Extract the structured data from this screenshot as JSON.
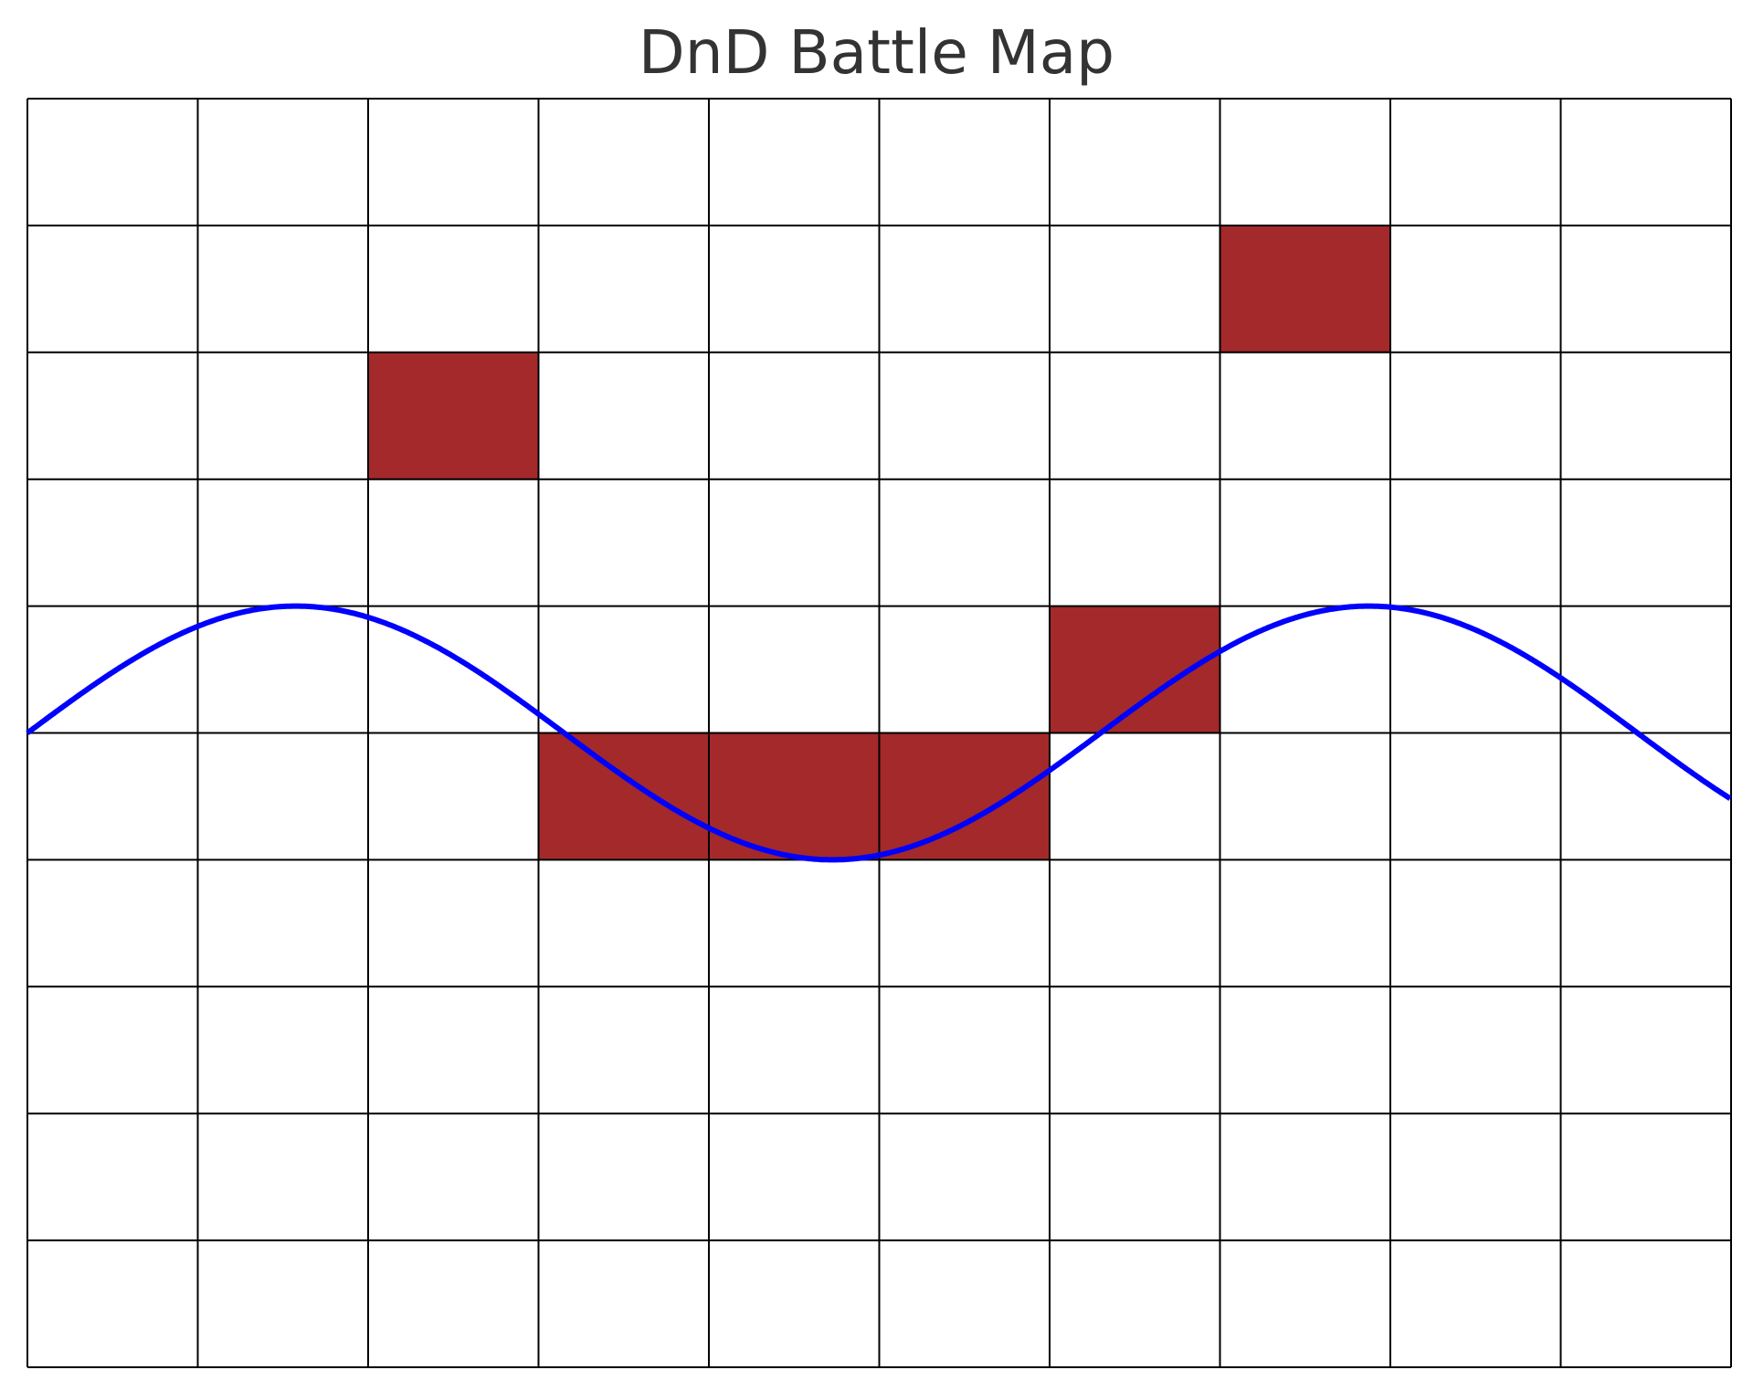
{
  "title": "DnD Battle Map",
  "grid": {
    "columns": 10,
    "rows": 10,
    "line_color": "#000000",
    "background": "#ffffff"
  },
  "blocked_cells": {
    "color": "#a3292a",
    "cells": [
      {
        "col": 7,
        "row": 1
      },
      {
        "col": 2,
        "row": 2
      },
      {
        "col": 6,
        "row": 4
      },
      {
        "col": 3,
        "row": 5
      },
      {
        "col": 4,
        "row": 5
      },
      {
        "col": 5,
        "row": 5
      }
    ]
  },
  "path": {
    "color": "#0000ff",
    "shape": "sine",
    "amplitude": 1,
    "centre_row_line": 5,
    "period_cells": 6.3,
    "phase_start": 0,
    "direction": "starts-rising"
  }
}
